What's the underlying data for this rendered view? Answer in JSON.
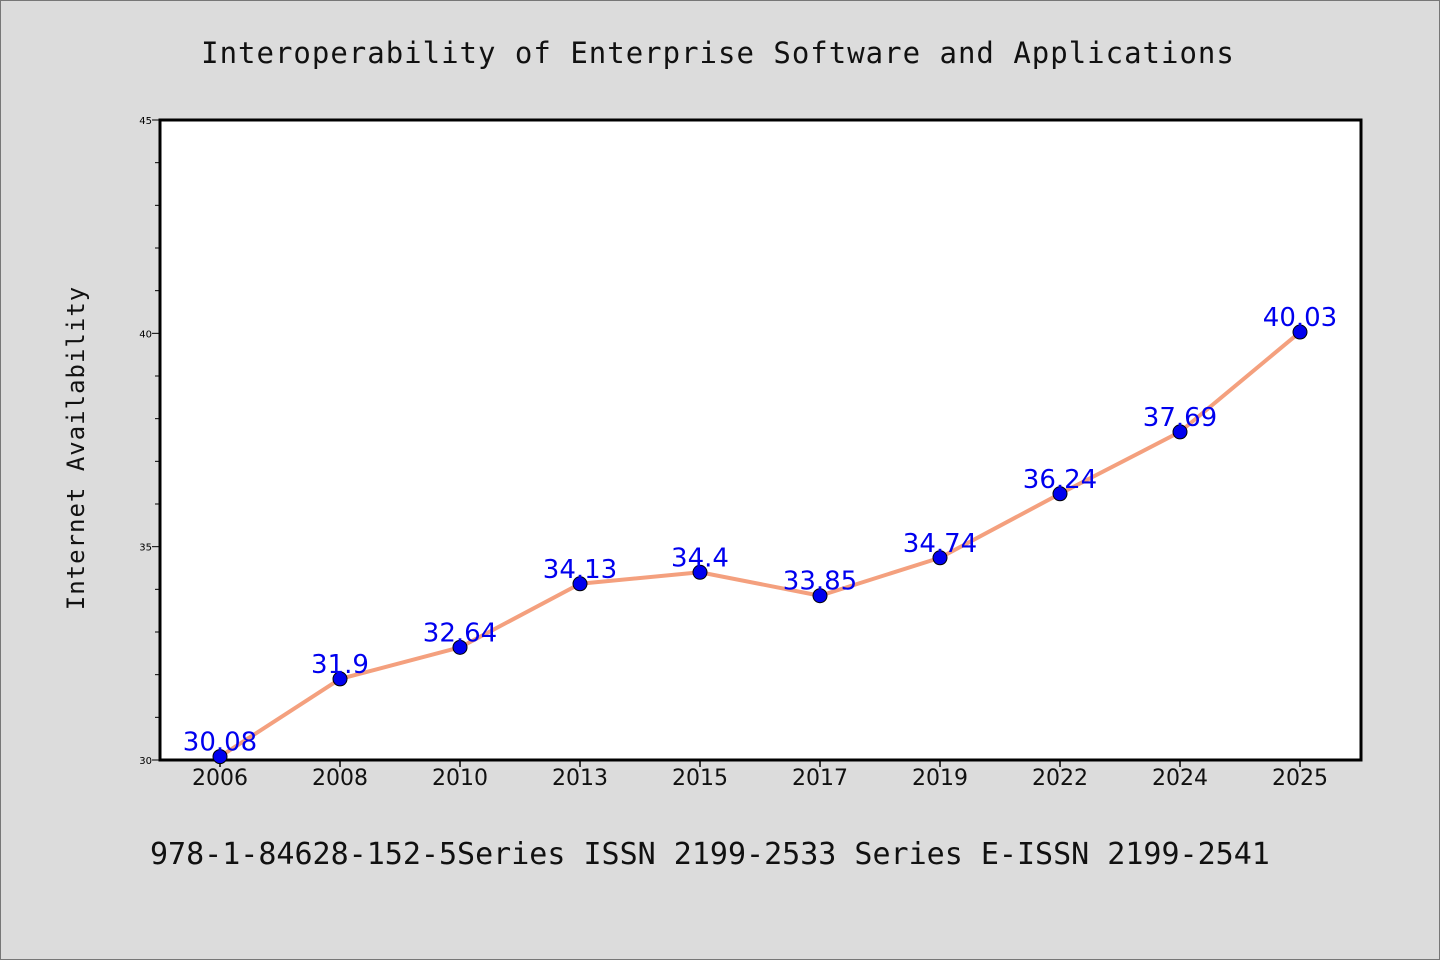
{
  "chart_data": {
    "type": "line",
    "title": "Interoperability of Enterprise Software and Applications",
    "xlabel": "",
    "ylabel": "Internet Availability",
    "categories": [
      "2006",
      "2008",
      "2010",
      "2013",
      "2015",
      "2017",
      "2019",
      "2022",
      "2024",
      "2025"
    ],
    "series": [
      {
        "values": [
          30.08,
          31.9,
          32.64,
          34.13,
          34.4,
          33.85,
          34.74,
          36.24,
          37.69,
          40.03
        ],
        "line_color": "#f4a07e",
        "marker_color": "#0000ee"
      }
    ],
    "data_labels": [
      "30.08",
      "31.9",
      "32.64",
      "34.13",
      "34.4",
      "33.85",
      "34.74",
      "36.24",
      "37.69",
      "40.03"
    ],
    "ylim": [
      30,
      45
    ],
    "yticks": [
      "30",
      "35",
      "40",
      "45"
    ],
    "grid": false,
    "legend": "none",
    "label_color": "#0000ee"
  },
  "footer": {
    "text": "978-1-84628-152-5Series ISSN 2199-2533 Series E-ISSN 2199-2541"
  }
}
